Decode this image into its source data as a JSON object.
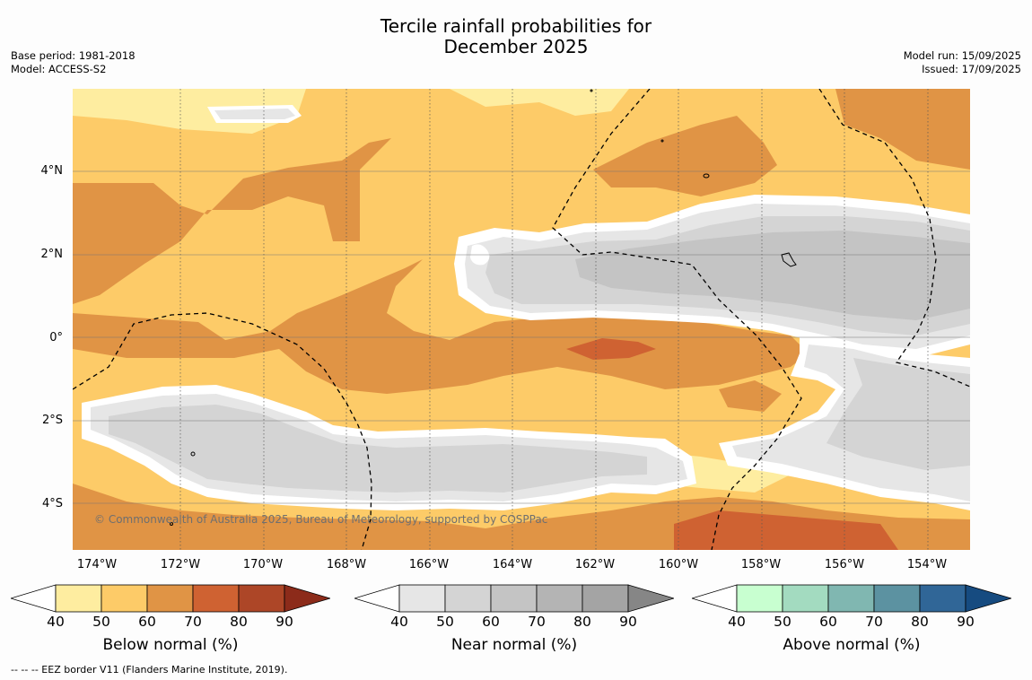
{
  "title": {
    "line1": "Tercile rainfall probabilities for",
    "line2": "December 2025"
  },
  "meta_left": {
    "base_period": "Base period: 1981-2018",
    "model": "Model: ACCESS-S2"
  },
  "meta_right": {
    "model_run": "Model run: 15/09/2025",
    "issued": "Issued: 17/09/2025"
  },
  "lat_labels": [
    "4°N",
    "2°N",
    "0°",
    "2°S",
    "4°S"
  ],
  "lon_labels": [
    "174°W",
    "172°W",
    "170°W",
    "168°W",
    "166°W",
    "164°W",
    "162°W",
    "160°W",
    "158°W",
    "156°W",
    "154°W"
  ],
  "copyright": "© Commonwealth of Australia 2025, Bureau of Meteorology, supported by COSPPac",
  "colorbars": [
    {
      "label": "Below normal (%)",
      "ticks": [
        "40",
        "50",
        "60",
        "70",
        "80",
        "90"
      ],
      "colors": [
        "#ffffff",
        "#feeda0",
        "#fdcb68",
        "#e09445",
        "#cf6232",
        "#ad4627",
        "#8c2b1a"
      ]
    },
    {
      "label": "Near normal (%)",
      "ticks": [
        "40",
        "50",
        "60",
        "70",
        "80",
        "90"
      ],
      "colors": [
        "#ffffff",
        "#e6e6e6",
        "#d4d4d4",
        "#c4c4c4",
        "#b4b4b4",
        "#a4a4a4",
        "#868686"
      ]
    },
    {
      "label": "Above normal (%)",
      "ticks": [
        "40",
        "50",
        "60",
        "70",
        "80",
        "90"
      ],
      "colors": [
        "#ffffff",
        "#c8ffd0",
        "#a3dbc0",
        "#80b7b1",
        "#5c92a1",
        "#306697",
        "#164b80"
      ]
    }
  ],
  "footnote": "--  --  -- EEZ border V11 (Flanders Marine Institute, 2019)."
}
